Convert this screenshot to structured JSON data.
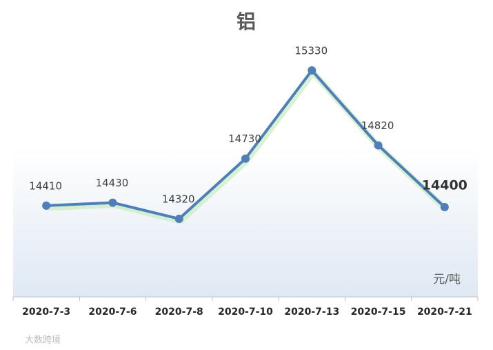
{
  "chart_data": {
    "type": "line",
    "title": "铝",
    "categories": [
      "2020-7-3",
      "2020-7-6",
      "2020-7-8",
      "2020-7-10",
      "2020-7-13",
      "2020-7-15",
      "2020-7-21"
    ],
    "values": [
      14410,
      14430,
      14320,
      14730,
      15330,
      14820,
      14400
    ],
    "color": "#4e7fb8",
    "unit": "元/吨",
    "watermark": "大数跨境"
  }
}
